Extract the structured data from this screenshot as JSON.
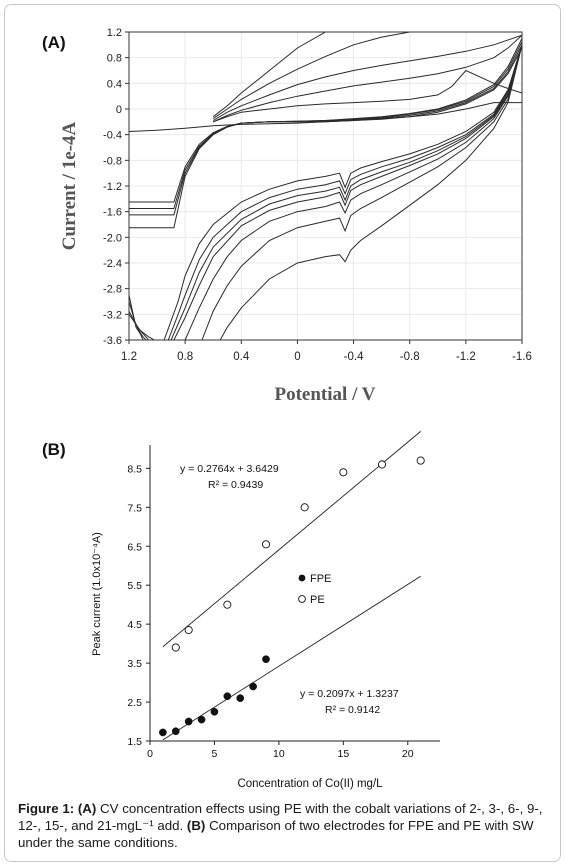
{
  "chart_data": [
    {
      "type": "line",
      "panel_label": "(A)",
      "xlabel": "Potential / V",
      "ylabel": "Current / 1e-4A",
      "xlim": [
        1.2,
        -1.6
      ],
      "ylim": [
        -3.6,
        1.2
      ],
      "x_ticks": [
        1.2,
        0.8,
        0.4,
        0,
        -0.4,
        -0.8,
        -1.2,
        -1.6
      ],
      "x_tick_labels": [
        "1.2",
        "0.8",
        "0.4",
        "0",
        "-0.4",
        "-0.8",
        "-1.2",
        "-1.6"
      ],
      "y_ticks": [
        1.2,
        0.8,
        0.4,
        0,
        -0.4,
        -0.8,
        -1.2,
        -1.6,
        -2.0,
        -2.4,
        -2.8,
        -3.2,
        -3.6
      ],
      "y_tick_labels": [
        "1.2",
        "0.8",
        "0.4",
        "0",
        "-0.4",
        "-0.8",
        "-1.2",
        "-1.6",
        "-2.0",
        "-2.4",
        "-2.8",
        "-3.2",
        "-3.6"
      ],
      "series": [
        {
          "x": [
            1.2,
            1.0,
            0.9,
            0.88,
            0.8,
            0.7,
            0.6,
            0.5,
            0.4,
            0.2,
            0,
            -0.2,
            -0.4,
            -0.6,
            -0.8,
            -1.0,
            -1.2,
            -1.4,
            -1.5,
            -1.6
          ],
          "y": [
            -1.45,
            -1.45,
            -1.45,
            -1.45,
            -0.9,
            -0.55,
            -0.37,
            -0.27,
            -0.22,
            -0.2,
            -0.2,
            -0.2,
            -0.18,
            -0.16,
            -0.12,
            -0.05,
            0.08,
            0.3,
            0.55,
            0.95
          ]
        },
        {
          "x": [
            1.2,
            1.0,
            0.9,
            0.88,
            0.8,
            0.7,
            0.6,
            0.5,
            0.4,
            0.2,
            0,
            -0.2,
            -0.4,
            -0.6,
            -0.8,
            -1.0,
            -1.2,
            -1.4,
            -1.5,
            -1.6
          ],
          "y": [
            -1.55,
            -1.55,
            -1.55,
            -1.55,
            -0.95,
            -0.58,
            -0.38,
            -0.27,
            -0.22,
            -0.2,
            -0.2,
            -0.19,
            -0.17,
            -0.14,
            -0.1,
            -0.03,
            0.1,
            0.32,
            0.58,
            1.0
          ]
        },
        {
          "x": [
            1.2,
            1.0,
            0.9,
            0.88,
            0.8,
            0.7,
            0.6,
            0.5,
            0.4,
            0.2,
            0,
            -0.2,
            -0.4,
            -0.6,
            -0.8,
            -1.0,
            -1.2,
            -1.4,
            -1.5,
            -1.6
          ],
          "y": [
            -1.65,
            -1.65,
            -1.65,
            -1.65,
            -1.0,
            -0.6,
            -0.39,
            -0.28,
            -0.22,
            -0.2,
            -0.19,
            -0.18,
            -0.16,
            -0.13,
            -0.08,
            -0.01,
            0.12,
            0.35,
            0.62,
            1.05
          ]
        },
        {
          "x": [
            1.2,
            1.0,
            0.9,
            0.88,
            0.8,
            0.7,
            0.6,
            0.5,
            0.4,
            0.2,
            0,
            -0.2,
            -0.4,
            -0.6,
            -0.8,
            -1.0,
            -1.2,
            -1.4,
            -1.5,
            -1.6
          ],
          "y": [
            -1.85,
            -1.85,
            -1.85,
            -1.85,
            -1.05,
            -0.62,
            -0.4,
            -0.28,
            -0.22,
            -0.2,
            -0.19,
            -0.18,
            -0.15,
            -0.12,
            -0.07,
            0.0,
            0.14,
            0.38,
            0.66,
            1.1
          ]
        },
        {
          "x": [
            1.2,
            1.0,
            0.8,
            0.7,
            0.6,
            0.5,
            0.4,
            0.2,
            0,
            -0.2,
            -0.4,
            -0.6,
            -0.8,
            -1.0,
            -1.2,
            -1.4,
            -1.5,
            -1.6
          ],
          "y": [
            -0.35,
            -0.33,
            -0.3,
            -0.28,
            -0.26,
            -0.25,
            -0.24,
            -0.23,
            -0.22,
            -0.2,
            -0.18,
            -0.15,
            -0.12,
            -0.08,
            0.0,
            0.1,
            0.1,
            0.1
          ]
        },
        {
          "x": [
            0.6,
            0.5,
            0.4,
            0.2,
            0,
            -0.2,
            -0.4,
            -0.6,
            -0.8,
            -1.0,
            -1.1,
            -1.2,
            -1.3,
            -1.4,
            -1.5,
            -1.6
          ],
          "y": [
            -0.2,
            -0.12,
            -0.05,
            0.0,
            0.05,
            0.08,
            0.1,
            0.12,
            0.15,
            0.22,
            0.35,
            0.6,
            0.5,
            0.4,
            0.32,
            0.25
          ]
        },
        {
          "x": [
            0.6,
            0.5,
            0.4,
            0.2,
            0,
            -0.2,
            -0.4,
            -0.6,
            -0.8,
            -1.0,
            -1.2,
            -1.4,
            -1.5,
            -1.6
          ],
          "y": [
            -0.2,
            -0.1,
            -0.02,
            0.1,
            0.2,
            0.28,
            0.36,
            0.42,
            0.48,
            0.55,
            0.65,
            0.8,
            0.95,
            1.15
          ]
        },
        {
          "x": [
            0.6,
            0.5,
            0.4,
            0.2,
            0,
            -0.2,
            -0.4,
            -0.6,
            -0.8,
            -1.0,
            -1.2,
            -1.4,
            -1.6
          ],
          "y": [
            -0.18,
            -0.05,
            0.05,
            0.22,
            0.38,
            0.5,
            0.6,
            0.68,
            0.75,
            0.82,
            0.9,
            1.0,
            1.15
          ]
        },
        {
          "x": [
            0.6,
            0.5,
            0.4,
            0.2,
            0,
            -0.2,
            -0.4,
            -0.6,
            -0.8,
            -1.0,
            -1.2
          ],
          "y": [
            -0.15,
            0.0,
            0.15,
            0.4,
            0.62,
            0.82,
            1.0,
            1.12,
            1.2,
            1.2,
            1.2
          ]
        },
        {
          "x": [
            0.6,
            0.5,
            0.4,
            0.2,
            0,
            -0.2,
            -0.4,
            -0.6
          ],
          "y": [
            -0.12,
            0.05,
            0.25,
            0.6,
            0.95,
            1.2,
            1.2,
            1.2
          ]
        },
        {
          "x": [
            0.95,
            0.9,
            0.85,
            0.8,
            0.7,
            0.6,
            0.4,
            0.2,
            0,
            -0.2,
            -0.3,
            -0.34,
            -0.38,
            -0.45,
            -0.6,
            -0.8,
            -1.0,
            -1.2,
            -1.4,
            -1.5,
            -1.6
          ],
          "y": [
            -3.6,
            -3.3,
            -3.0,
            -2.6,
            -2.1,
            -1.8,
            -1.45,
            -1.25,
            -1.12,
            -1.05,
            -1.0,
            -1.22,
            -1.0,
            -0.92,
            -0.82,
            -0.7,
            -0.55,
            -0.35,
            -0.05,
            0.3,
            1.0
          ]
        },
        {
          "x": [
            0.92,
            0.85,
            0.8,
            0.7,
            0.6,
            0.4,
            0.2,
            0,
            -0.2,
            -0.3,
            -0.34,
            -0.38,
            -0.45,
            -0.6,
            -0.8,
            -1.0,
            -1.2,
            -1.4,
            -1.5,
            -1.6
          ],
          "y": [
            -3.6,
            -3.2,
            -2.9,
            -2.35,
            -2.0,
            -1.6,
            -1.38,
            -1.25,
            -1.18,
            -1.12,
            -1.32,
            -1.1,
            -1.02,
            -0.9,
            -0.77,
            -0.6,
            -0.4,
            -0.08,
            0.28,
            1.0
          ]
        },
        {
          "x": [
            0.9,
            0.85,
            0.8,
            0.7,
            0.6,
            0.4,
            0.2,
            0,
            -0.2,
            -0.3,
            -0.34,
            -0.38,
            -0.45,
            -0.6,
            -0.8,
            -1.0,
            -1.2,
            -1.4,
            -1.5,
            -1.6
          ],
          "y": [
            -3.6,
            -3.35,
            -3.1,
            -2.55,
            -2.15,
            -1.72,
            -1.48,
            -1.35,
            -1.28,
            -1.22,
            -1.42,
            -1.2,
            -1.1,
            -0.98,
            -0.83,
            -0.65,
            -0.43,
            -0.1,
            0.25,
            1.0
          ]
        },
        {
          "x": [
            0.88,
            0.8,
            0.7,
            0.6,
            0.4,
            0.2,
            0,
            -0.2,
            -0.3,
            -0.34,
            -0.38,
            -0.45,
            -0.6,
            -0.8,
            -1.0,
            -1.2,
            -1.4,
            -1.5,
            -1.6
          ],
          "y": [
            -3.6,
            -3.25,
            -2.75,
            -2.3,
            -1.82,
            -1.58,
            -1.45,
            -1.37,
            -1.3,
            -1.5,
            -1.27,
            -1.18,
            -1.05,
            -0.88,
            -0.7,
            -0.46,
            -0.12,
            0.22,
            1.0
          ]
        },
        {
          "x": [
            0.8,
            0.7,
            0.6,
            0.5,
            0.4,
            0.2,
            0,
            -0.2,
            -0.3,
            -0.34,
            -0.38,
            -0.45,
            -0.6,
            -0.8,
            -1.0,
            -1.2,
            -1.4,
            -1.5,
            -1.6
          ],
          "y": [
            -3.6,
            -3.1,
            -2.65,
            -2.3,
            -2.05,
            -1.75,
            -1.6,
            -1.52,
            -1.45,
            -1.62,
            -1.42,
            -1.32,
            -1.18,
            -0.98,
            -0.78,
            -0.52,
            -0.15,
            0.2,
            1.0
          ]
        },
        {
          "x": [
            0.68,
            0.6,
            0.5,
            0.4,
            0.2,
            0,
            -0.2,
            -0.3,
            -0.34,
            -0.38,
            -0.45,
            -0.6,
            -0.8,
            -1.0,
            -1.2,
            -1.4,
            -1.5,
            -1.6
          ],
          "y": [
            -3.6,
            -3.15,
            -2.75,
            -2.45,
            -2.05,
            -1.85,
            -1.75,
            -1.7,
            -1.9,
            -1.66,
            -1.55,
            -1.38,
            -1.14,
            -0.9,
            -0.6,
            -0.2,
            0.15,
            1.0
          ]
        },
        {
          "x": [
            0.55,
            0.5,
            0.4,
            0.2,
            0,
            -0.2,
            -0.3,
            -0.34,
            -0.38,
            -0.45,
            -0.6,
            -0.8,
            -1.0,
            -1.2,
            -1.4,
            -1.5,
            -1.6
          ],
          "y": [
            -3.6,
            -3.4,
            -3.1,
            -2.65,
            -2.4,
            -2.3,
            -2.27,
            -2.38,
            -2.2,
            -2.05,
            -1.82,
            -1.5,
            -1.18,
            -0.8,
            -0.3,
            0.1,
            1.0
          ]
        },
        {
          "x": [
            1.2,
            1.17,
            1.15,
            1.12,
            1.1
          ],
          "y": [
            -2.9,
            -3.2,
            -3.4,
            -3.5,
            -3.6
          ]
        },
        {
          "x": [
            1.2,
            1.16,
            1.13,
            1.1,
            1.08
          ],
          "y": [
            -3.0,
            -3.3,
            -3.45,
            -3.55,
            -3.6
          ]
        },
        {
          "x": [
            1.2,
            1.14,
            1.1,
            1.06
          ],
          "y": [
            -3.15,
            -3.4,
            -3.5,
            -3.6
          ]
        },
        {
          "x": [
            1.2,
            1.12,
            1.06,
            1.02
          ],
          "y": [
            -3.2,
            -3.45,
            -3.55,
            -3.6
          ]
        }
      ]
    },
    {
      "type": "scatter",
      "panel_label": "(B)",
      "xlabel": "Concentration of Co(II) mg/L",
      "ylabel": "Peak current (1.0x10⁻⁴A)",
      "xlim": [
        0,
        22.5
      ],
      "ylim": [
        1.5,
        9.1
      ],
      "x_ticks": [
        0,
        5,
        10,
        15,
        20
      ],
      "y_ticks": [
        1.5,
        2.5,
        3.5,
        4.5,
        5.5,
        6.5,
        7.5,
        8.5
      ],
      "x_tick_labels": [
        "0",
        "5",
        "10",
        "15",
        "20"
      ],
      "y_tick_labels": [
        "1.5",
        "2.5",
        "3.5",
        "4.5",
        "5.5",
        "6.5",
        "7.5",
        "8.5"
      ],
      "legend": [
        {
          "label": "FPE",
          "marker": "filled"
        },
        {
          "label": "PE",
          "marker": "open"
        }
      ],
      "series": [
        {
          "name": "FPE",
          "marker": "filled",
          "x": [
            1,
            2,
            3,
            4,
            5,
            6,
            7,
            8,
            9
          ],
          "y": [
            1.72,
            1.75,
            2.0,
            2.05,
            2.25,
            2.65,
            2.6,
            2.9,
            3.6
          ],
          "fit": {
            "x": [
              1,
              21
            ],
            "y": [
              1.53,
              5.73
            ]
          },
          "equation": "y = 0.2097x + 1.3237",
          "r2_label": "R² = 0.9142"
        },
        {
          "name": "PE",
          "marker": "open",
          "x": [
            2,
            3,
            6,
            9,
            12,
            15,
            18,
            21
          ],
          "y": [
            3.9,
            4.35,
            5.0,
            6.55,
            7.5,
            8.4,
            8.6,
            8.7
          ],
          "fit": {
            "x": [
              1,
              21
            ],
            "y": [
              3.92,
              9.45
            ]
          },
          "equation": "y = 0.2764x + 3.6429",
          "r2_label": "R² = 0.9439"
        }
      ]
    }
  ],
  "caption": {
    "prefix": "Figure 1:",
    "a_label": "(A)",
    "a_text": " CV concentration effects using PE with the cobalt variations of 2-, 3-, 6-, 9-, 12-, 15-, and 21-mgL⁻¹ add. ",
    "b_label": "(B)",
    "b_text": " Comparison of two electrodes for FPE and PE with SW under the same conditions."
  }
}
